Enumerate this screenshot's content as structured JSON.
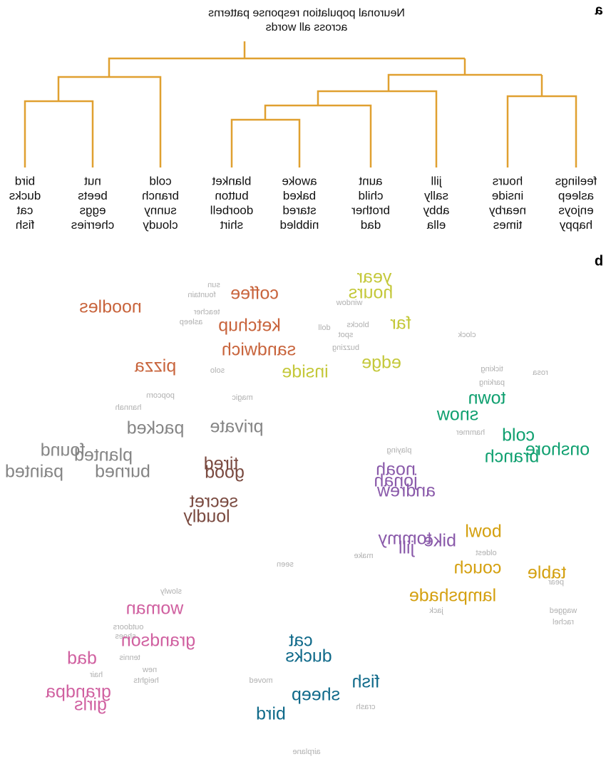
{
  "panel_a": {
    "label": "a",
    "title": [
      "Neuronal population response patterns",
      "across all words"
    ],
    "clusters": [
      [
        "feelings",
        "asleep",
        "enjoys",
        "happy"
      ],
      [
        "hours",
        "inside",
        "nearby",
        "times"
      ],
      [
        "jill",
        "sally",
        "abby",
        "ella"
      ],
      [
        "aunt",
        "child",
        "brother",
        "dad"
      ],
      [
        "awoke",
        "baked",
        "stared",
        "nibbled"
      ],
      [
        "blanket",
        "button",
        "doorbell",
        "shirt"
      ],
      [
        "cold",
        "branch",
        "sunny",
        "cloudy"
      ],
      [
        "nut",
        "beets",
        "eggs",
        "cherries"
      ],
      [
        "bird",
        "ducks",
        "cat",
        "fish"
      ]
    ]
  },
  "panel_b": {
    "label": "b",
    "groups": [
      {
        "color": "#c8643c",
        "words": [
          "noodles",
          "coffee",
          "ketchup",
          "sandwich",
          "pizza"
        ]
      },
      {
        "color": "#c4c83a",
        "words": [
          "year",
          "hours",
          "far",
          "edge",
          "inside"
        ]
      },
      {
        "color": "#858585",
        "words": [
          "private",
          "packed",
          "found",
          "planted",
          "burned",
          "painted"
        ]
      },
      {
        "color": "#7a4a40",
        "words": [
          "tired",
          "good",
          "secret",
          "loudly"
        ]
      },
      {
        "color": "#8a5aaa",
        "words": [
          "noah",
          "jonah",
          "andrew",
          "tommy",
          "bike",
          "jill"
        ]
      },
      {
        "color": "#10a070",
        "words": [
          "town",
          "snow",
          "cold",
          "onshore",
          "branch"
        ]
      },
      {
        "color": "#d4a010",
        "words": [
          "bowl",
          "couch",
          "table",
          "lampshade"
        ]
      },
      {
        "color": "#d060a0",
        "words": [
          "woman",
          "grandson",
          "dad",
          "grandpa",
          "girls"
        ]
      },
      {
        "color": "#106a8a",
        "words": [
          "cat",
          "ducks",
          "fish",
          "sheep",
          "bird"
        ]
      }
    ],
    "faint_words": [
      "sun",
      "fountain",
      "teacher",
      "asleep",
      "window",
      "blocks",
      "doll",
      "spot",
      "buzzing",
      "clock",
      "ticking",
      "rosa",
      "parking",
      "hammer",
      "slowly",
      "outdoors",
      "shoes",
      "tennis",
      "new",
      "heights",
      "hair",
      "oldest",
      "jack",
      "wagged",
      "rachel",
      "pear",
      "moved",
      "crash",
      "airplane",
      "popcorn",
      "hannah",
      "solo",
      "magic",
      "make",
      "seen",
      "playing"
    ]
  }
}
